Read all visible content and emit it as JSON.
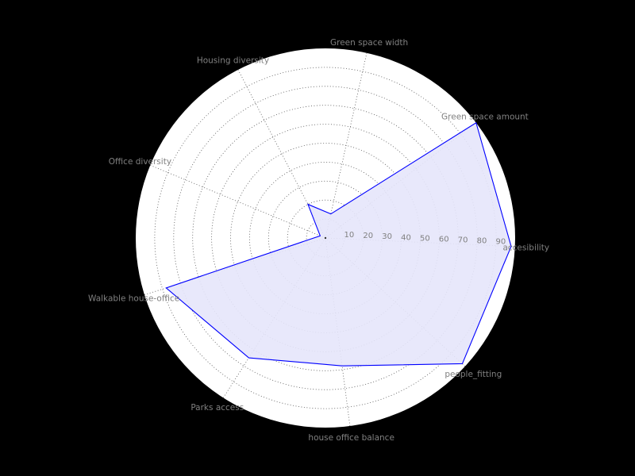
{
  "colors": {
    "background": "#000000",
    "plot_face": "#ffffff",
    "grid": "#555555",
    "label_text": "#808080",
    "series_line": "#0000ff",
    "series_fill": "#e5e5fb"
  },
  "chart_data": {
    "type": "radar",
    "title": "",
    "axes": [
      "accesibility",
      "Green space amount",
      "Green space width",
      "Housing diversity",
      "Office diversity",
      "Walkable house-office",
      "Parks access",
      "house office balance",
      "people_fitting"
    ],
    "series": [
      {
        "name": "",
        "values": [
          98,
          100,
          13,
          20,
          3,
          88,
          75,
          68,
          98
        ]
      }
    ],
    "rlim": [
      0,
      100
    ],
    "rticks": [
      10,
      20,
      30,
      40,
      50,
      60,
      70,
      80,
      90
    ],
    "rtick_labels": [
      "10",
      "20",
      "30",
      "40",
      "50",
      "60",
      "70",
      "80",
      "90"
    ],
    "grid": true
  }
}
